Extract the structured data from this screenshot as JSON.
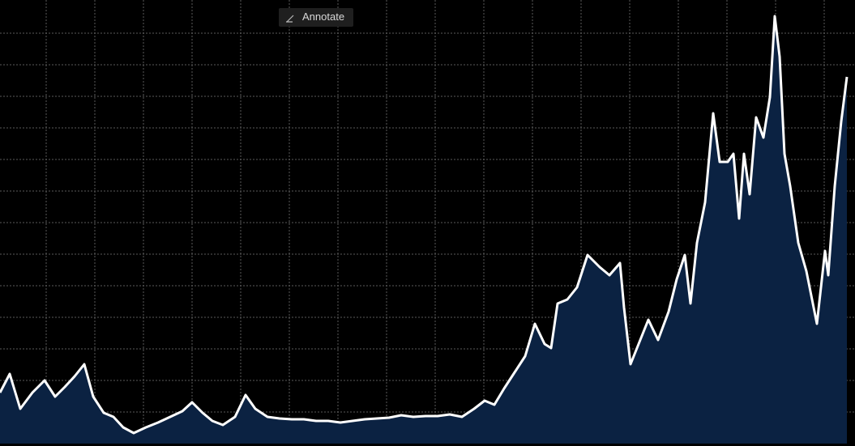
{
  "chart_data": {
    "type": "area",
    "annotate_button": "Annotate",
    "x": [
      0,
      12,
      25,
      40,
      55,
      68,
      80,
      92,
      104,
      115,
      128,
      140,
      152,
      165,
      180,
      195,
      210,
      225,
      237,
      250,
      262,
      275,
      290,
      303,
      315,
      330,
      345,
      360,
      375,
      390,
      405,
      420,
      435,
      450,
      465,
      480,
      495,
      510,
      525,
      540,
      555,
      570,
      585,
      598,
      610,
      622,
      635,
      648,
      660,
      672,
      680,
      688,
      700,
      712,
      725,
      740,
      752,
      765,
      770,
      778,
      790,
      800,
      812,
      825,
      835,
      845,
      852,
      860,
      870,
      880,
      888,
      898,
      905,
      912,
      918,
      925,
      933,
      942,
      950,
      956,
      962,
      968,
      975,
      985,
      995,
      1008,
      1018,
      1022,
      1030,
      1038,
      1045
    ],
    "values": [
      63,
      86,
      43,
      63,
      78,
      58,
      70,
      83,
      98,
      58,
      38,
      33,
      20,
      13,
      20,
      26,
      33,
      40,
      51,
      38,
      28,
      23,
      33,
      60,
      43,
      33,
      31,
      30,
      30,
      28,
      28,
      26,
      28,
      30,
      31,
      32,
      35,
      33,
      34,
      34,
      36,
      33,
      43,
      53,
      48,
      68,
      88,
      108,
      148,
      123,
      118,
      173,
      178,
      193,
      233,
      218,
      208,
      223,
      168,
      98,
      128,
      153,
      128,
      163,
      203,
      233,
      173,
      248,
      298,
      408,
      348,
      348,
      358,
      278,
      358,
      308,
      403,
      378,
      428,
      528,
      478,
      358,
      318,
      248,
      213,
      148,
      238,
      208,
      318,
      398,
      453
    ],
    "color": "#ffffff",
    "fill_color": "#0b2242",
    "xlim": [
      0,
      1055
    ],
    "ylim": [
      0,
      548
    ],
    "xticks": [
      57,
      117,
      177,
      237,
      297,
      357,
      417,
      477,
      537,
      597,
      657,
      717,
      777,
      837,
      897,
      957,
      1017
    ],
    "yticks": [
      39,
      78,
      117,
      156,
      195,
      234,
      273,
      312,
      351,
      390,
      429,
      468,
      507
    ],
    "grid": true
  }
}
